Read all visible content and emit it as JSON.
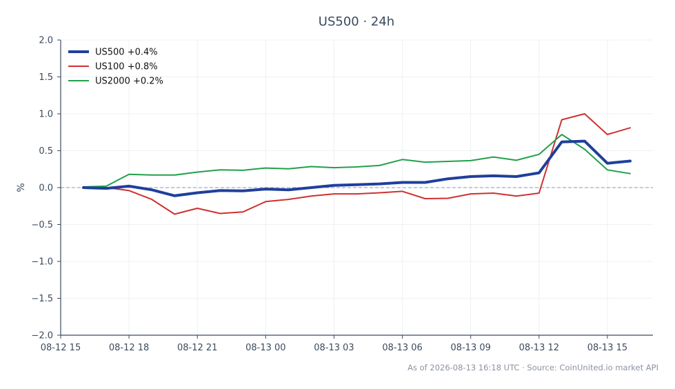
{
  "chart_data": {
    "type": "line",
    "title": "US500 · 24h",
    "xlabel": "",
    "ylabel": "%",
    "ylim": [
      -2.0,
      2.0
    ],
    "yticks": [
      2.0,
      1.5,
      1.0,
      0.5,
      0.0,
      -0.5,
      -1.0,
      -1.5,
      -2.0
    ],
    "ytick_labels": [
      "2.0",
      "1.5",
      "1.0",
      "0.5",
      "0.0",
      "−0.5",
      "−1.0",
      "−1.5",
      "−2.0"
    ],
    "xlim": [
      "08-12 15:00",
      "08-13 17:00"
    ],
    "xticks": [
      "08-12 15",
      "08-12 18",
      "08-12 21",
      "08-13 00",
      "08-13 03",
      "08-13 06",
      "08-13 09",
      "08-13 12",
      "08-13 15"
    ],
    "x": [
      "08-12 16:00",
      "08-12 17:00",
      "08-12 18:00",
      "08-12 19:00",
      "08-12 20:00",
      "08-12 21:00",
      "08-12 22:00",
      "08-12 23:00",
      "08-13 00:00",
      "08-13 01:00",
      "08-13 02:00",
      "08-13 03:00",
      "08-13 04:00",
      "08-13 05:00",
      "08-13 06:00",
      "08-13 07:00",
      "08-13 08:00",
      "08-13 09:00",
      "08-13 10:00",
      "08-13 11:00",
      "08-13 12:00",
      "08-13 13:00",
      "08-13 14:00",
      "08-13 15:00",
      "08-13 16:00"
    ],
    "series": [
      {
        "name": "US500 +0.4%",
        "color": "#1f3f9c",
        "values": [
          0.0,
          -0.01,
          0.02,
          -0.03,
          -0.11,
          -0.07,
          -0.04,
          -0.045,
          -0.02,
          -0.03,
          0.0,
          0.03,
          0.04,
          0.05,
          0.07,
          0.07,
          0.12,
          0.15,
          0.16,
          0.15,
          0.2,
          0.62,
          0.63,
          0.33,
          0.36
        ]
      },
      {
        "name": "US100 +0.8%",
        "color": "#cf3030",
        "values": [
          0.01,
          0.0,
          -0.04,
          -0.16,
          -0.36,
          -0.28,
          -0.35,
          -0.33,
          -0.19,
          -0.16,
          -0.115,
          -0.085,
          -0.085,
          -0.07,
          -0.05,
          -0.15,
          -0.145,
          -0.085,
          -0.075,
          -0.115,
          -0.075,
          0.92,
          1.0,
          0.72,
          0.81
        ]
      },
      {
        "name": "US2000 +0.2%",
        "color": "#21a04a",
        "values": [
          0.01,
          0.02,
          0.18,
          0.17,
          0.17,
          0.21,
          0.24,
          0.235,
          0.265,
          0.255,
          0.285,
          0.27,
          0.28,
          0.3,
          0.38,
          0.345,
          0.355,
          0.365,
          0.415,
          0.37,
          0.45,
          0.72,
          0.52,
          0.24,
          0.19
        ]
      }
    ],
    "zero_line": {
      "value": 0.0,
      "color": "#8a94b8",
      "style": "dashed"
    },
    "grid": true,
    "legend": "top-left",
    "footer": "As of 2026-08-13 16:18 UTC · Source: CoinUnited.io market API"
  }
}
